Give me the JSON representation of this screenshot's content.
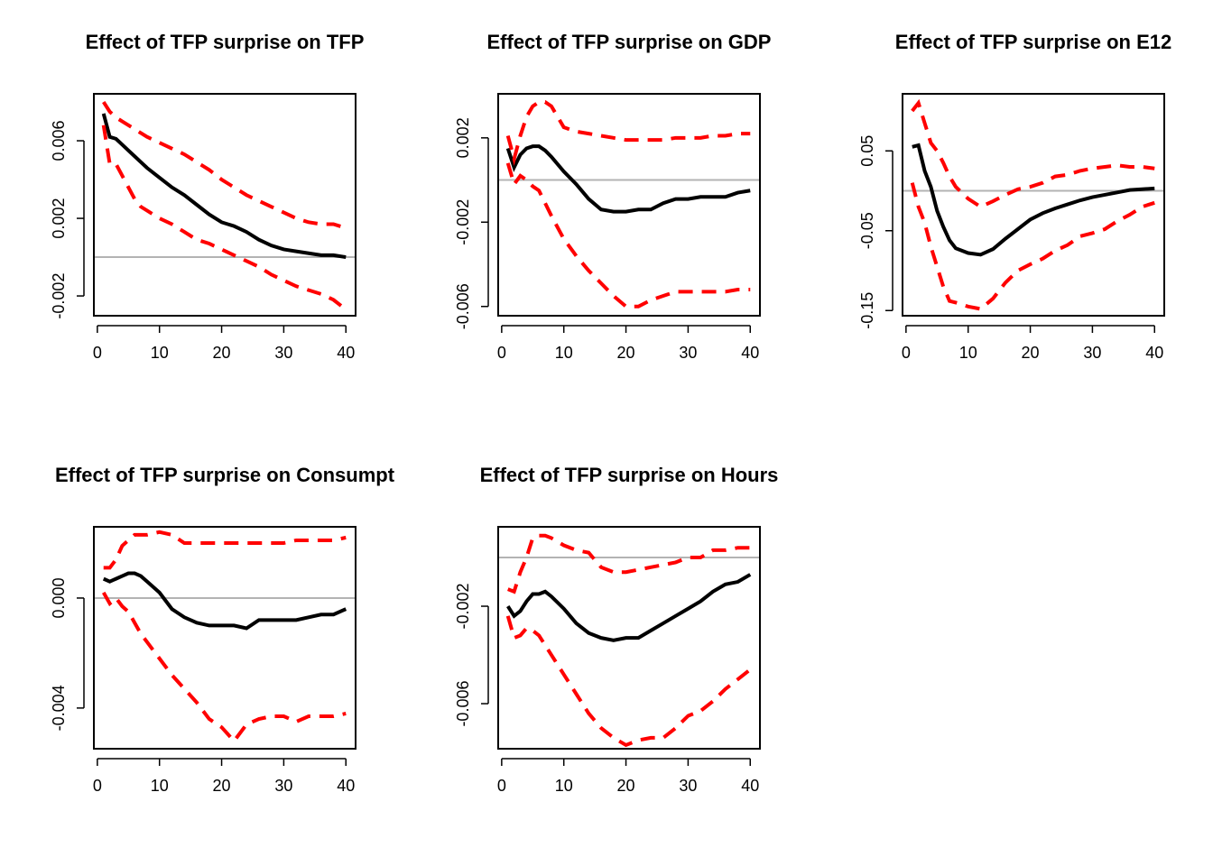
{
  "chart_data": [
    {
      "type": "line",
      "title": "Effect of TFP surprise on TFP",
      "x": [
        1,
        2,
        3,
        4,
        5,
        6,
        7,
        8,
        10,
        12,
        14,
        16,
        18,
        20,
        22,
        24,
        26,
        28,
        30,
        32,
        34,
        36,
        38,
        40
      ],
      "xlim": [
        -0.56,
        41.56
      ],
      "xticks": [
        0,
        10,
        20,
        30,
        40
      ],
      "ylim": [
        -0.00302,
        0.00842
      ],
      "yticks": [
        -0.002,
        0.002,
        0.006
      ],
      "hline": 0,
      "hline_color": "#b3b3b3",
      "series": [
        {
          "color": "#000000",
          "dash": false,
          "values": [
            0.0074,
            0.0062,
            0.0061,
            0.0058,
            0.0055,
            0.0052,
            0.0049,
            0.0046,
            0.0041,
            0.0036,
            0.0032,
            0.0027,
            0.0022,
            0.0018,
            0.0016,
            0.0013,
            0.0009,
            0.0006,
            0.0004,
            0.0003,
            0.0002,
            0.0001,
            0.0001,
            0.0
          ]
        },
        {
          "color": "#ff0000",
          "dash": true,
          "values": [
            0.008,
            0.0075,
            0.0072,
            0.007,
            0.0068,
            0.0066,
            0.0064,
            0.0062,
            0.0059,
            0.0056,
            0.0053,
            0.0049,
            0.0045,
            0.004,
            0.0036,
            0.0032,
            0.0029,
            0.0026,
            0.0023,
            0.002,
            0.0018,
            0.0017,
            0.0017,
            0.0015
          ]
        },
        {
          "color": "#ff0000",
          "dash": true,
          "values": [
            0.0068,
            0.0048,
            0.0048,
            0.0042,
            0.0036,
            0.003,
            0.0026,
            0.0024,
            0.002,
            0.0017,
            0.0013,
            0.0009,
            0.0007,
            0.0004,
            0.0001,
            -0.0002,
            -0.0005,
            -0.0009,
            -0.0012,
            -0.0015,
            -0.0017,
            -0.0019,
            -0.0022,
            -0.0027
          ]
        }
      ]
    },
    {
      "type": "line",
      "title": "Effect of TFP surprise on GDP",
      "x": [
        1,
        2,
        3,
        4,
        5,
        6,
        7,
        8,
        10,
        12,
        14,
        16,
        18,
        20,
        22,
        24,
        26,
        28,
        30,
        32,
        34,
        36,
        38,
        40
      ],
      "xlim": [
        -0.56,
        41.56
      ],
      "xticks": [
        0,
        10,
        20,
        30,
        40
      ],
      "ylim": [
        -0.00644,
        0.00409
      ],
      "yticks": [
        -0.006,
        -0.002,
        0.002
      ],
      "hline": 0,
      "hline_color": "#b3b3b3",
      "series": [
        {
          "color": "#000000",
          "dash": false,
          "values": [
            0.0015,
            0.0006,
            0.0012,
            0.0015,
            0.0016,
            0.0016,
            0.0014,
            0.0011,
            0.0004,
            -0.0002,
            -0.0009,
            -0.0014,
            -0.0015,
            -0.0015,
            -0.0014,
            -0.0014,
            -0.0011,
            -0.0009,
            -0.0009,
            -0.0008,
            -0.0008,
            -0.0008,
            -0.0006,
            -0.0005
          ]
        },
        {
          "color": "#ff0000",
          "dash": true,
          "values": [
            0.0021,
            0.001,
            0.0021,
            0.003,
            0.0035,
            0.0037,
            0.0037,
            0.0035,
            0.0025,
            0.0023,
            0.0022,
            0.0021,
            0.002,
            0.0019,
            0.0019,
            0.0019,
            0.0019,
            0.002,
            0.002,
            0.002,
            0.0021,
            0.0021,
            0.0022,
            0.0022
          ]
        },
        {
          "color": "#ff0000",
          "dash": true,
          "values": [
            0.0008,
            -0.0002,
            0.0002,
            0.0,
            -0.0003,
            -0.0005,
            -0.0011,
            -0.0017,
            -0.0028,
            -0.0036,
            -0.0043,
            -0.0049,
            -0.0055,
            -0.006,
            -0.006,
            -0.0057,
            -0.0055,
            -0.0053,
            -0.0053,
            -0.0053,
            -0.0053,
            -0.0053,
            -0.0052,
            -0.0052
          ]
        }
      ]
    },
    {
      "type": "line",
      "title": "Effect of TFP surprise on E12",
      "x": [
        1,
        2,
        3,
        4,
        5,
        6,
        7,
        8,
        10,
        12,
        14,
        16,
        18,
        20,
        22,
        24,
        26,
        28,
        30,
        32,
        34,
        36,
        38,
        40
      ],
      "xlim": [
        -0.56,
        41.56
      ],
      "xticks": [
        0,
        10,
        20,
        30,
        40
      ],
      "ylim": [
        -0.1565,
        0.1215
      ],
      "yticks": [
        -0.15,
        -0.05,
        0.05
      ],
      "hline": 0,
      "hline_color": "#b3b3b3",
      "series": [
        {
          "color": "#000000",
          "dash": false,
          "values": [
            0.055,
            0.057,
            0.025,
            0.005,
            -0.025,
            -0.045,
            -0.062,
            -0.072,
            -0.078,
            -0.08,
            -0.073,
            -0.06,
            -0.048,
            -0.036,
            -0.028,
            -0.022,
            -0.017,
            -0.012,
            -0.008,
            -0.005,
            -0.002,
            0.001,
            0.002,
            0.003
          ]
        },
        {
          "color": "#ff0000",
          "dash": true,
          "values": [
            0.1,
            0.11,
            0.085,
            0.06,
            0.05,
            0.035,
            0.018,
            0.005,
            -0.01,
            -0.02,
            -0.013,
            -0.005,
            0.002,
            0.005,
            0.01,
            0.018,
            0.02,
            0.025,
            0.028,
            0.03,
            0.032,
            0.03,
            0.03,
            0.028
          ]
        },
        {
          "color": "#ff0000",
          "dash": true,
          "values": [
            0.01,
            -0.02,
            -0.04,
            -0.07,
            -0.095,
            -0.12,
            -0.138,
            -0.14,
            -0.145,
            -0.148,
            -0.135,
            -0.115,
            -0.1,
            -0.092,
            -0.085,
            -0.075,
            -0.068,
            -0.057,
            -0.053,
            -0.048,
            -0.038,
            -0.03,
            -0.02,
            -0.015
          ]
        }
      ]
    },
    {
      "type": "line",
      "title": "Effect of TFP surprise on Consumpt",
      "x": [
        1,
        2,
        3,
        4,
        5,
        6,
        7,
        8,
        10,
        12,
        14,
        16,
        18,
        20,
        22,
        24,
        26,
        28,
        30,
        32,
        34,
        36,
        38,
        40
      ],
      "xlim": [
        -0.56,
        41.56
      ],
      "xticks": [
        0,
        10,
        20,
        30,
        40
      ],
      "ylim": [
        -0.00548,
        0.00259
      ],
      "yticks": [
        -0.004,
        {
          "value": 0,
          "label": "0.000"
        }
      ],
      "hline": 0,
      "hline_color": "#b3b3b3",
      "series": [
        {
          "color": "#000000",
          "dash": false,
          "values": [
            0.0007,
            0.0006,
            0.0007,
            0.0008,
            0.0009,
            0.0009,
            0.0008,
            0.0006,
            0.0002,
            -0.0004,
            -0.0007,
            -0.0009,
            -0.001,
            -0.001,
            -0.001,
            -0.0011,
            -0.0008,
            -0.0008,
            -0.0008,
            -0.0008,
            -0.0007,
            -0.0006,
            -0.0006,
            -0.0004
          ]
        },
        {
          "color": "#ff0000",
          "dash": true,
          "values": [
            0.0011,
            0.0011,
            0.0014,
            0.0019,
            0.0021,
            0.0023,
            0.0023,
            0.0023,
            0.0024,
            0.0023,
            0.002,
            0.002,
            0.002,
            0.002,
            0.002,
            0.002,
            0.002,
            0.002,
            0.002,
            0.0021,
            0.0021,
            0.0021,
            0.0021,
            0.0022
          ]
        },
        {
          "color": "#ff0000",
          "dash": true,
          "values": [
            0.0002,
            -0.0002,
            0.0,
            -0.0003,
            -0.0005,
            -0.0009,
            -0.0013,
            -0.0016,
            -0.0022,
            -0.0028,
            -0.0033,
            -0.0038,
            -0.0044,
            -0.0047,
            -0.0052,
            -0.0046,
            -0.0044,
            -0.0043,
            -0.0043,
            -0.0045,
            -0.0043,
            -0.0043,
            -0.0043,
            -0.0042
          ]
        }
      ]
    },
    {
      "type": "line",
      "title": "Effect of TFP surprise on Hours",
      "x": [
        1,
        2,
        3,
        4,
        5,
        6,
        7,
        8,
        10,
        12,
        14,
        16,
        18,
        20,
        22,
        24,
        26,
        28,
        30,
        32,
        34,
        36,
        38,
        40
      ],
      "xlim": [
        -0.56,
        41.56
      ],
      "xticks": [
        0,
        10,
        20,
        30,
        40
      ],
      "ylim": [
        -0.00785,
        0.00126
      ],
      "yticks": [
        -0.006,
        -0.002
      ],
      "hline": 0,
      "hline_color": "#b3b3b3",
      "series": [
        {
          "color": "#000000",
          "dash": false,
          "values": [
            -0.002,
            -0.0024,
            -0.0022,
            -0.0018,
            -0.0015,
            -0.0015,
            -0.0014,
            -0.0016,
            -0.0021,
            -0.0027,
            -0.0031,
            -0.0033,
            -0.0034,
            -0.0033,
            -0.0033,
            -0.003,
            -0.0027,
            -0.0024,
            -0.0021,
            -0.0018,
            -0.0014,
            -0.0011,
            -0.001,
            -0.0007
          ]
        },
        {
          "color": "#ff0000",
          "dash": true,
          "values": [
            -0.0013,
            -0.0014,
            -0.0006,
            0.0,
            0.0008,
            0.0009,
            0.0009,
            0.0008,
            0.0005,
            0.0003,
            0.0002,
            -0.0004,
            -0.0006,
            -0.0006,
            -0.0005,
            -0.0004,
            -0.0003,
            -0.0002,
            0.0,
            0.0,
            0.0003,
            0.0003,
            0.0004,
            0.0004
          ]
        },
        {
          "color": "#ff0000",
          "dash": true,
          "values": [
            -0.0024,
            -0.0033,
            -0.0032,
            -0.0029,
            -0.003,
            -0.0032,
            -0.0036,
            -0.004,
            -0.0048,
            -0.0056,
            -0.0064,
            -0.007,
            -0.0074,
            -0.0077,
            -0.0075,
            -0.0074,
            -0.0074,
            -0.007,
            -0.0065,
            -0.0063,
            -0.0059,
            -0.0054,
            -0.005,
            -0.0046
          ]
        }
      ]
    }
  ]
}
